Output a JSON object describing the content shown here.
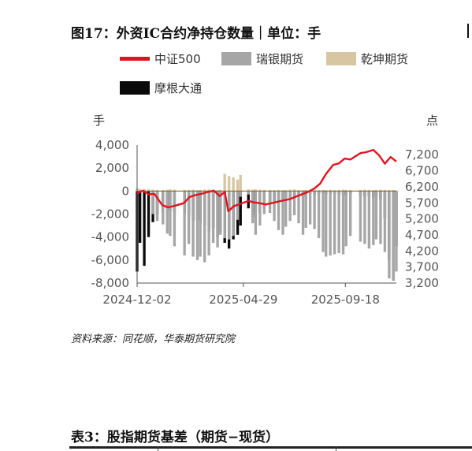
{
  "figure": {
    "title": "图17：外资IC合约净持仓数量｜单位：手",
    "source": "资料来源：同花顺，华泰期货研究院"
  },
  "table_caption": "表3：股指期货基差（期货−现货）",
  "chart_data": {
    "type": "bar+line",
    "legend": [
      {
        "name": "中证500",
        "color": "#e0141e",
        "kind": "line"
      },
      {
        "name": "瑞银期货",
        "color": "#a6a6a6",
        "kind": "bar"
      },
      {
        "name": "乾坤期货",
        "color": "#d8c6a2",
        "kind": "bar"
      },
      {
        "name": "摩根大通",
        "color": "#0a0a0a",
        "kind": "bar"
      }
    ],
    "left_axis": {
      "unit": "手",
      "ylim": [
        -8000,
        4000
      ],
      "ticks": [
        4000,
        2000,
        0,
        -2000,
        -4000,
        -6000,
        -8000
      ],
      "tick_labels": [
        "4,000",
        "2,000",
        "0",
        "-2,000",
        "-4,000",
        "-6,000",
        "-8,000"
      ]
    },
    "right_axis": {
      "unit": "点",
      "ylim": [
        3200,
        7500
      ],
      "ticks": [
        7200,
        6700,
        6200,
        5700,
        5200,
        4700,
        4200,
        3700,
        3200
      ],
      "tick_labels": [
        "7,200",
        "6,700",
        "6,200",
        "5,700",
        "5,200",
        "4,700",
        "4,200",
        "3,700",
        "3,200"
      ]
    },
    "x_axis": {
      "start": "2024-12-02",
      "end": "2025-11-28",
      "tick_labels": [
        "2024-12-02",
        "2025-04-29",
        "2025-09-18"
      ]
    },
    "index_line": {
      "name": "中证500",
      "dates": [
        "2024-12-02",
        "2024-12-10",
        "2024-12-18",
        "2024-12-26",
        "2025-01-06",
        "2025-01-14",
        "2025-01-22",
        "2025-02-05",
        "2025-02-13",
        "2025-02-21",
        "2025-03-03",
        "2025-03-11",
        "2025-03-19",
        "2025-03-27",
        "2025-04-03",
        "2025-04-08",
        "2025-04-16",
        "2025-04-24",
        "2025-05-06",
        "2025-05-14",
        "2025-05-22",
        "2025-05-30",
        "2025-06-09",
        "2025-06-17",
        "2025-06-25",
        "2025-07-03",
        "2025-07-11",
        "2025-07-21",
        "2025-07-29",
        "2025-08-06",
        "2025-08-14",
        "2025-08-22",
        "2025-09-01",
        "2025-09-09",
        "2025-09-17",
        "2025-09-25",
        "2025-10-09",
        "2025-10-17",
        "2025-10-27",
        "2025-11-04",
        "2025-11-12",
        "2025-11-20",
        "2025-11-28"
      ],
      "values": [
        6000,
        6080,
        5970,
        5980,
        5630,
        5560,
        5600,
        5690,
        5880,
        5940,
        5990,
        6040,
        6080,
        5910,
        6040,
        5440,
        5600,
        5660,
        5760,
        5710,
        5690,
        5650,
        5700,
        5740,
        5780,
        5820,
        5890,
        5980,
        6050,
        6150,
        6300,
        6600,
        6880,
        6930,
        7080,
        7050,
        7250,
        7280,
        7350,
        7180,
        6920,
        7130,
        6990
      ]
    },
    "bars": {
      "dates": [
        "2024-12-02",
        "2024-12-06",
        "2024-12-12",
        "2024-12-18",
        "2024-12-24",
        "2024-12-30",
        "2025-01-07",
        "2025-01-13",
        "2025-01-17",
        "2025-01-23",
        "2025-02-06",
        "2025-02-12",
        "2025-02-18",
        "2025-02-24",
        "2025-02-28",
        "2025-03-06",
        "2025-03-12",
        "2025-03-18",
        "2025-03-24",
        "2025-03-28",
        "2025-04-03",
        "2025-04-09",
        "2025-04-15",
        "2025-04-21",
        "2025-04-25",
        "2025-05-06",
        "2025-05-12",
        "2025-05-16",
        "2025-05-22",
        "2025-05-28",
        "2025-06-05",
        "2025-06-11",
        "2025-06-17",
        "2025-06-23",
        "2025-06-27",
        "2025-07-03",
        "2025-07-09",
        "2025-07-15",
        "2025-07-21",
        "2025-07-25",
        "2025-07-31",
        "2025-08-06",
        "2025-08-12",
        "2025-08-18",
        "2025-08-22",
        "2025-08-28",
        "2025-09-03",
        "2025-09-09",
        "2025-09-15",
        "2025-09-19",
        "2025-09-25",
        "2025-10-09",
        "2025-10-15",
        "2025-10-21",
        "2025-10-27",
        "2025-10-31",
        "2025-11-06",
        "2025-11-12",
        "2025-11-18",
        "2025-11-24",
        "2025-11-28"
      ],
      "摩根大通": [
        -7000,
        -4500,
        -6500,
        -4000,
        -2700,
        -2100,
        -1900,
        -1500,
        -1700,
        -1800,
        -2000,
        -2200,
        -2600,
        -2500,
        -2800,
        -3000,
        -3500,
        -3200,
        -4000,
        -3500,
        -4500,
        -5000,
        -4200,
        -3800,
        -3000,
        -1500,
        -2300,
        -2100,
        -1900,
        -1500,
        -1200,
        -1000,
        -800,
        -900,
        -600,
        -700,
        -500,
        -400,
        -500,
        -300,
        -200,
        -300,
        -200,
        -200,
        -300,
        -250,
        -200,
        -300,
        -350,
        -300,
        -250,
        -400,
        -500,
        -450,
        -600,
        -500,
        -700,
        -2400,
        -6000,
        -7800,
        -4800
      ],
      "瑞银期货": [
        0,
        0,
        0,
        0,
        -2000,
        -2600,
        -2900,
        -3700,
        -3900,
        -4800,
        -5600,
        -4600,
        -5700,
        -6000,
        -5700,
        -6200,
        -5600,
        -4500,
        -4900,
        -3800,
        -4100,
        -4200,
        -3900,
        -2500,
        -500,
        -300,
        -2800,
        -3800,
        -3000,
        -2000,
        -1900,
        -2600,
        -3400,
        -3800,
        -3100,
        -2600,
        -2100,
        -2800,
        -3800,
        -3200,
        -2900,
        -3300,
        -4100,
        -5300,
        -5700,
        -5600,
        -5500,
        -5400,
        -5500,
        -4800,
        -3900,
        -4400,
        -4600,
        -5000,
        -4700,
        -4200,
        -4600,
        -5300,
        -7600,
        -7800,
        -7000
      ],
      "乾坤期货": [
        250,
        200,
        180,
        150,
        120,
        100,
        100,
        120,
        150,
        120,
        100,
        100,
        120,
        80,
        100,
        120,
        150,
        100,
        80,
        100,
        1500,
        1300,
        1200,
        1000,
        1400,
        150,
        120,
        150,
        120,
        100,
        100,
        80,
        100,
        80,
        100,
        120,
        150,
        100,
        80,
        100,
        120,
        100,
        80,
        100,
        80,
        100,
        80,
        100,
        120,
        100,
        80,
        100,
        120,
        100,
        80,
        100,
        120,
        100,
        80,
        100,
        60
      ]
    }
  }
}
